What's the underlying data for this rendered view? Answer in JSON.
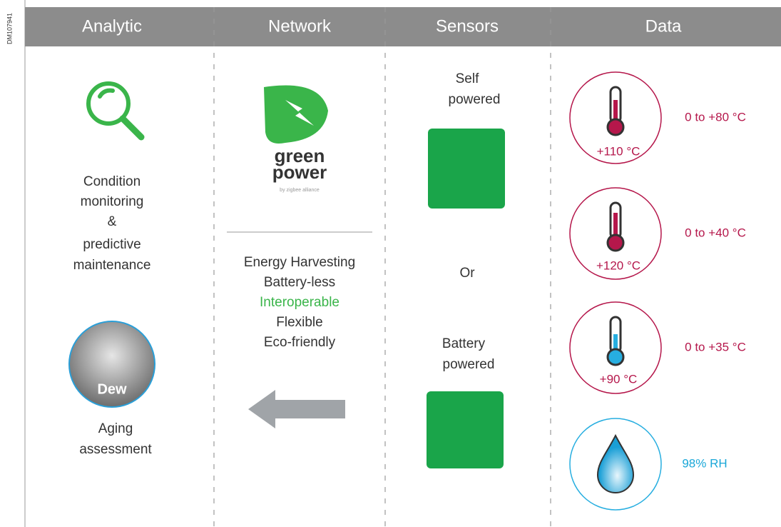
{
  "side_label": "DM107941",
  "headers": [
    "Analytic",
    "Network",
    "Sensors",
    "Data"
  ],
  "analytic": {
    "condition_lines": [
      "Condition",
      "monitoring",
      "&",
      "predictive",
      "maintenance"
    ],
    "dew_label": "Dew",
    "aging_lines": [
      "Aging",
      "assessment"
    ]
  },
  "network": {
    "logo_lines": [
      "green",
      "power"
    ],
    "logo_sub": "by zigbee alliance",
    "features": [
      "Energy Harvesting",
      "Battery-less",
      "Interoperable",
      "Flexible",
      "Eco-friendly"
    ]
  },
  "sensors": {
    "self_lines": [
      "Self",
      "powered"
    ],
    "or": "Or",
    "battery_lines": [
      "Battery",
      "powered"
    ]
  },
  "data": {
    "items": [
      {
        "inner": "+110 °C",
        "range": "0 to +80 °C"
      },
      {
        "inner": "+120 °C",
        "range": "0 to +40 °C"
      },
      {
        "inner": "+90 °C",
        "range": "0 to +35 °C"
      },
      {
        "range": "98% RH"
      }
    ]
  }
}
